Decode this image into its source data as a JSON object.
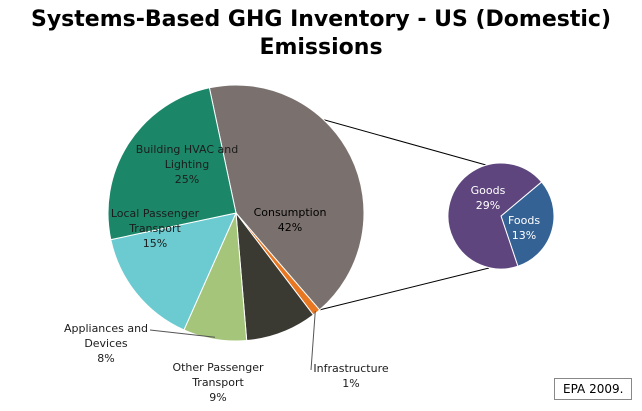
{
  "colors": {
    "building": "#1B8768",
    "consumption": "#7A716E",
    "infrastructure": "#E87722",
    "other_transport": "#3B3A32",
    "appliances": "#A5C67A",
    "local_transport": "#6BCBD0",
    "goods": "#5E457E",
    "foods": "#356295",
    "connector": "#000000"
  },
  "chart_data": {
    "type": "pie",
    "title_lines": [
      "Systems-Based GHG Inventory - US (Domestic)",
      "Emissions"
    ],
    "main": [
      {
        "key": "consumption",
        "label_lines": [
          "Consumption",
          "42%"
        ],
        "value": 42
      },
      {
        "key": "infrastructure",
        "label_lines": [
          "Infrastructure",
          "1%"
        ],
        "value": 1
      },
      {
        "key": "other_transport",
        "label_lines": [
          "Other Passenger",
          "Transport",
          "9%"
        ],
        "value": 9
      },
      {
        "key": "appliances",
        "label_lines": [
          "Appliances and",
          "Devices",
          "8%"
        ],
        "value": 8
      },
      {
        "key": "local_transport",
        "label_lines": [
          "Local Passenger",
          "Transport",
          "15%"
        ],
        "value": 15
      },
      {
        "key": "building",
        "label_lines": [
          "Building HVAC and",
          "Lighting",
          "25%"
        ],
        "value": 25
      }
    ],
    "breakout_of": "consumption",
    "secondary": [
      {
        "key": "goods",
        "label_lines": [
          "Goods",
          "29%"
        ],
        "value": 29
      },
      {
        "key": "foods",
        "label_lines": [
          "Foods",
          "13%"
        ],
        "value": 13
      }
    ],
    "source": "EPA 2009."
  }
}
